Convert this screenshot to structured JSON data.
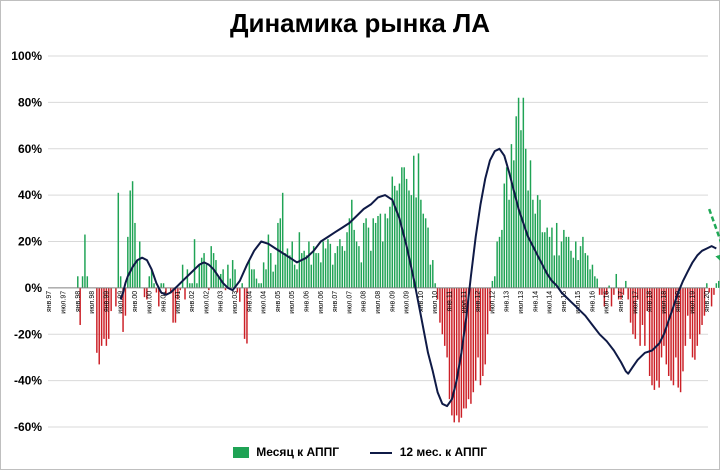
{
  "title": "Динамика рынка ЛА",
  "legend": {
    "bars_label": "Месяц к АППГ",
    "line_label": "12 мес. к АППГ"
  },
  "colors": {
    "positive_bar": "#1fa355",
    "negative_bar": "#cc2027",
    "line": "#0f1a46",
    "arrow": "#20a856",
    "grid": "#d9d9d9"
  },
  "chart_data": {
    "type": "bar",
    "yunit": "%",
    "ylim": [
      -60,
      100
    ],
    "yticks": [
      -60,
      -40,
      -20,
      0,
      20,
      40,
      60,
      80,
      100
    ],
    "ytick_labels": [
      "-60%",
      "-40%",
      "-20%",
      "0%",
      "20%",
      "40%",
      "60%",
      "80%",
      "100%"
    ],
    "grid": true,
    "legend_position": "bottom",
    "x_tick_labels": [
      "янв.97",
      "июл.97",
      "янв.98",
      "июл.98",
      "янв.99",
      "июл.99",
      "янв.00",
      "июл.00",
      "янв.01",
      "июл.01",
      "янв.02",
      "июл.02",
      "янв.03",
      "июл.03",
      "янв.04",
      "июл.04",
      "янв.05",
      "июл.05",
      "янв.06",
      "июл.06",
      "янв.07",
      "июл.07",
      "янв.08",
      "июл.08",
      "янв.09",
      "июл.09",
      "янв.10",
      "июл.10",
      "янв.11",
      "июл.11",
      "янв.12",
      "июл.12",
      "янв.13",
      "июл.13",
      "янв.14",
      "июл.14",
      "янв.15",
      "июл.15",
      "янв.16",
      "июл.16",
      "янв.17",
      "июл.17",
      "янв.18",
      "июл.18",
      "янв.19",
      "июл.19",
      "янв.20"
    ],
    "x_start_month": "янв.97",
    "series": [
      {
        "name": "Месяц к АППГ",
        "kind": "bar",
        "values": [
          null,
          null,
          null,
          null,
          null,
          null,
          null,
          null,
          null,
          null,
          null,
          null,
          5,
          -16,
          5,
          23,
          5,
          null,
          null,
          null,
          -28,
          -33,
          -25,
          -22,
          -25,
          -22,
          -10,
          null,
          -8,
          41,
          5,
          -19,
          -12,
          22,
          42,
          46,
          28,
          12,
          20,
          0,
          -4,
          -5,
          5,
          8,
          2,
          -2,
          -8,
          2,
          2,
          -3,
          0,
          -2,
          -15,
          -15,
          -5,
          -1,
          10,
          -5,
          8,
          2,
          2,
          21,
          2,
          10,
          13,
          15,
          10,
          -1,
          18,
          15,
          12,
          5,
          6,
          8,
          -1,
          10,
          4,
          12,
          8,
          -2,
          -6,
          2,
          -22,
          -24,
          12,
          8,
          8,
          4,
          2,
          2,
          11,
          8,
          23,
          15,
          7,
          10,
          28,
          30,
          41,
          15,
          17,
          14,
          20,
          10,
          8,
          24,
          15,
          16,
          14,
          20,
          10,
          18,
          15,
          15,
          11,
          20,
          17,
          21,
          19,
          10,
          15,
          18,
          21,
          18,
          16,
          24,
          30,
          38,
          25,
          20,
          18,
          11,
          28,
          30,
          26,
          16,
          30,
          28,
          31,
          32,
          20,
          32,
          30,
          35,
          48,
          44,
          42,
          45,
          52,
          52,
          47,
          42,
          40,
          57,
          39,
          58,
          38,
          32,
          30,
          26,
          10,
          12,
          2,
          -5,
          -15,
          -20,
          -25,
          -30,
          -48,
          -55,
          -58,
          -55,
          -58,
          -56,
          -52,
          -52,
          -48,
          -50,
          -45,
          -40,
          -30,
          -42,
          -38,
          -33,
          -20,
          -10,
          3,
          5,
          20,
          22,
          25,
          45,
          52,
          38,
          62,
          55,
          74,
          82,
          68,
          82,
          60,
          42,
          55,
          38,
          32,
          40,
          38,
          24,
          24,
          26,
          22,
          26,
          14,
          28,
          14,
          20,
          25,
          22,
          22,
          16,
          13,
          20,
          12,
          18,
          22,
          15,
          14,
          8,
          10,
          5,
          4,
          -3,
          -3,
          -8,
          -3,
          1,
          -8,
          -3,
          6,
          -5,
          -5,
          -3,
          3,
          -5,
          -15,
          -20,
          -22,
          -5,
          -25,
          -16,
          -25,
          -10,
          -38,
          -42,
          -44,
          -40,
          -43,
          -30,
          -25,
          -33,
          -38,
          -40,
          -42,
          -30,
          -43,
          -45,
          -36,
          -25,
          -12,
          -22,
          -30,
          -31,
          -25,
          -20,
          -16,
          -12,
          2,
          -2,
          -8,
          -3,
          2,
          3,
          8,
          13,
          15,
          17,
          14,
          18,
          19,
          18,
          20,
          20,
          18,
          13,
          18,
          14,
          12,
          15,
          20,
          30,
          22,
          16,
          12
        ]
      },
      {
        "name": "12 мес. к АППГ",
        "kind": "line",
        "points": [
          [
            30,
            -5
          ],
          [
            31,
            -2
          ],
          [
            32,
            2
          ],
          [
            33,
            5
          ],
          [
            35,
            9
          ],
          [
            37,
            12
          ],
          [
            39,
            13
          ],
          [
            41,
            12
          ],
          [
            43,
            8
          ],
          [
            45,
            2
          ],
          [
            47,
            -2
          ],
          [
            49,
            -3
          ],
          [
            51,
            -2
          ],
          [
            54,
            1
          ],
          [
            57,
            4
          ],
          [
            60,
            7
          ],
          [
            63,
            10
          ],
          [
            65,
            11
          ],
          [
            67,
            10
          ],
          [
            69,
            8
          ],
          [
            71,
            5
          ],
          [
            73,
            2
          ],
          [
            75,
            0
          ],
          [
            77,
            -1
          ],
          [
            80,
            3
          ],
          [
            83,
            10
          ],
          [
            86,
            16
          ],
          [
            89,
            20
          ],
          [
            92,
            19
          ],
          [
            95,
            17
          ],
          [
            98,
            15
          ],
          [
            101,
            13
          ],
          [
            104,
            11
          ],
          [
            108,
            13
          ],
          [
            111,
            16
          ],
          [
            114,
            20
          ],
          [
            117,
            22
          ],
          [
            120,
            24
          ],
          [
            123,
            26
          ],
          [
            126,
            28
          ],
          [
            129,
            31
          ],
          [
            132,
            34
          ],
          [
            135,
            36
          ],
          [
            138,
            39
          ],
          [
            141,
            40
          ],
          [
            144,
            38
          ],
          [
            147,
            30
          ],
          [
            150,
            18
          ],
          [
            153,
            4
          ],
          [
            156,
            -12
          ],
          [
            159,
            -28
          ],
          [
            161,
            -36
          ],
          [
            163,
            -45
          ],
          [
            165,
            -50
          ],
          [
            167,
            -51
          ],
          [
            169,
            -48
          ],
          [
            171,
            -40
          ],
          [
            173,
            -28
          ],
          [
            175,
            -13
          ],
          [
            177,
            5
          ],
          [
            179,
            22
          ],
          [
            181,
            36
          ],
          [
            183,
            47
          ],
          [
            185,
            55
          ],
          [
            187,
            59
          ],
          [
            189,
            60
          ],
          [
            191,
            57
          ],
          [
            193,
            50
          ],
          [
            195,
            42
          ],
          [
            197,
            34
          ],
          [
            199,
            28
          ],
          [
            201,
            22
          ],
          [
            203,
            18
          ],
          [
            205,
            14
          ],
          [
            207,
            10
          ],
          [
            209,
            6
          ],
          [
            211,
            3
          ],
          [
            213,
            1
          ],
          [
            215,
            -2
          ],
          [
            217,
            -4
          ],
          [
            219,
            -6
          ],
          [
            221,
            -8
          ],
          [
            223,
            -10
          ],
          [
            225,
            -12
          ],
          [
            228,
            -16
          ],
          [
            231,
            -20
          ],
          [
            234,
            -23
          ],
          [
            237,
            -27
          ],
          [
            240,
            -32
          ],
          [
            242,
            -36
          ],
          [
            243,
            -37
          ],
          [
            245,
            -34
          ],
          [
            247,
            -31
          ],
          [
            250,
            -28
          ],
          [
            253,
            -27
          ],
          [
            256,
            -24
          ],
          [
            258,
            -20
          ],
          [
            260,
            -14
          ],
          [
            262,
            -8
          ],
          [
            264,
            -2
          ],
          [
            266,
            3
          ],
          [
            268,
            7
          ],
          [
            270,
            11
          ],
          [
            272,
            14
          ],
          [
            274,
            16
          ],
          [
            276,
            17
          ],
          [
            278,
            18
          ],
          [
            280,
            17
          ]
        ]
      }
    ],
    "trend_arrow": {
      "from": [
        277,
        34
      ],
      "to": [
        285,
        11
      ]
    }
  }
}
